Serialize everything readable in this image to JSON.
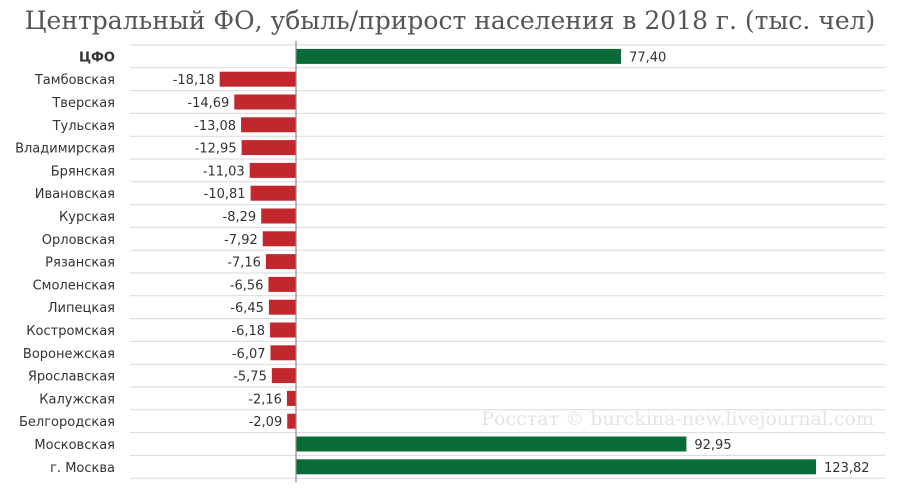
{
  "title": "Центральный ФО, убыль/прирост населения в 2018 г. (тыс. чел)",
  "watermark": "Росстат © burckina-new.livejournal.com",
  "colors": {
    "positive": "#0b6b38",
    "negative": "#c1272d",
    "axis": "#888888",
    "grid": "#d9d9d9",
    "label": "#333333"
  },
  "chart_data": {
    "type": "bar",
    "orientation": "horizontal",
    "title": "Центральный ФО, убыль/прирост населения в 2018 г. (тыс. чел)",
    "xlabel": "",
    "ylabel": "",
    "xlim": [
      -25,
      125
    ],
    "grid": "horizontal row separators",
    "categories": [
      "ЦФО",
      "Тамбовская",
      "Тверская",
      "Тульская",
      "Владимирская",
      "Брянская",
      "Ивановская",
      "Курская",
      "Орловская",
      "Рязанская",
      "Смоленская",
      "Липецкая",
      "Костромская",
      "Воронежская",
      "Ярославская",
      "Калужская",
      "Белгородская",
      "Московская",
      "г. Москва"
    ],
    "values": [
      77.4,
      -18.18,
      -14.69,
      -13.08,
      -12.95,
      -11.03,
      -10.81,
      -8.29,
      -7.92,
      -7.16,
      -6.56,
      -6.45,
      -6.18,
      -6.07,
      -5.75,
      -2.16,
      -2.09,
      92.95,
      123.82
    ],
    "value_labels": [
      "77,40",
      "-18,18",
      "-14,69",
      "-13,08",
      "-12,95",
      "-11,03",
      "-10,81",
      "-8,29",
      "-7,92",
      "-7,16",
      "-6,56",
      "-6,45",
      "-6,18",
      "-6,07",
      "-5,75",
      "-2,16",
      "-2,09",
      "92,95",
      "123,82"
    ],
    "bold_categories": [
      "ЦФО"
    ]
  }
}
